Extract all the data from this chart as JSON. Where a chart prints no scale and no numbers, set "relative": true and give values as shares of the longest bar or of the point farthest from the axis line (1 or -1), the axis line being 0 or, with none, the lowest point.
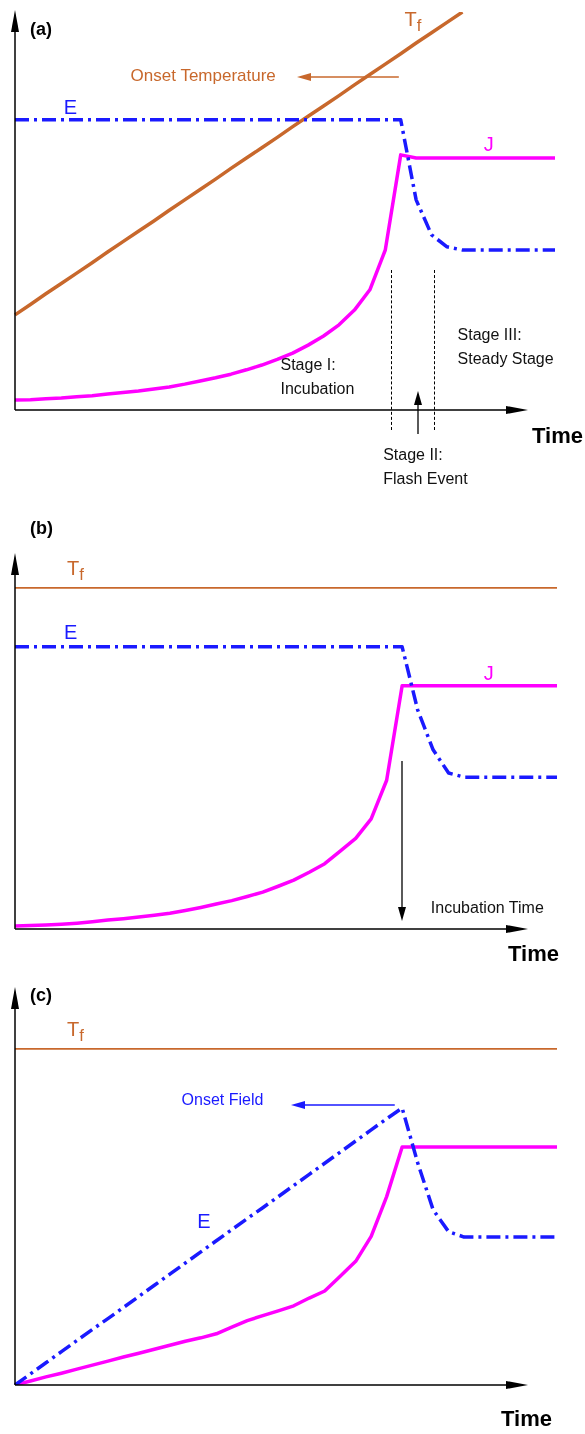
{
  "chart_data": [
    {
      "type": "line",
      "title": "(a)",
      "xlabel": "Time",
      "relative": true,
      "tick_labels": false,
      "marker": "none",
      "categories": [
        null,
        null,
        null,
        null,
        null,
        null,
        null,
        null,
        null,
        null,
        null,
        null,
        null,
        null,
        null,
        null,
        null,
        null,
        null,
        null,
        null,
        null,
        null,
        null,
        null,
        null,
        null,
        null,
        null,
        null,
        null,
        null,
        null,
        null,
        null,
        null
      ],
      "series": [
        {
          "name": "T$_{f}$",
          "color": "#c8682c",
          "values": [
            0.239,
            0.265,
            0.292,
            0.318,
            0.344,
            0.37,
            0.397,
            0.423,
            0.449,
            0.475,
            0.502,
            0.528,
            0.554,
            0.58,
            0.607,
            0.633,
            0.659,
            0.685,
            0.712,
            0.738,
            0.764,
            0.79,
            0.817,
            0.843,
            0.869,
            0.895,
            0.922,
            0.948,
            0.974,
            1.0,
            null,
            null,
            null,
            null,
            null,
            null
          ]
        },
        {
          "name": "E",
          "color": "#1a1aff",
          "line_style": "dashed",
          "values": [
            0.729,
            0.729,
            0.729,
            0.729,
            0.729,
            0.729,
            0.729,
            0.729,
            0.729,
            0.729,
            0.729,
            0.729,
            0.729,
            0.729,
            0.729,
            0.729,
            0.729,
            0.729,
            0.729,
            0.729,
            0.729,
            0.729,
            0.729,
            0.729,
            0.729,
            0.729,
            0.528,
            0.44,
            0.41,
            0.402,
            0.402,
            0.402,
            0.402,
            0.402,
            0.402,
            0.402
          ]
        },
        {
          "name": "J",
          "color": "#ff00ff",
          "values": [
            0.025,
            0.026,
            0.028,
            0.03,
            0.033,
            0.036,
            0.04,
            0.044,
            0.048,
            0.053,
            0.058,
            0.065,
            0.073,
            0.081,
            0.09,
            0.101,
            0.113,
            0.127,
            0.143,
            0.163,
            0.186,
            0.214,
            0.251,
            0.302,
            0.402,
            0.641,
            0.633,
            0.633,
            0.633,
            0.633,
            0.633,
            0.633,
            0.633,
            0.633,
            0.633,
            0.633
          ]
        }
      ],
      "annotations": [
        "Onset Temperature",
        "Stage I:\nIncubation",
        "Stage II:\nFlash Event",
        "Stage III:\nSteady Stage"
      ]
    },
    {
      "type": "line",
      "title": "(b)",
      "xlabel": "Time",
      "relative": true,
      "tick_labels": false,
      "marker": "none",
      "categories": [
        null,
        null,
        null,
        null,
        null,
        null,
        null,
        null,
        null,
        null,
        null,
        null,
        null,
        null,
        null,
        null,
        null,
        null,
        null,
        null,
        null,
        null,
        null,
        null,
        null,
        null,
        null,
        null,
        null,
        null,
        null,
        null,
        null,
        null,
        null,
        null
      ],
      "series": [
        {
          "name": "T$_{f}$",
          "color": "#c8682c",
          "values": [
            1,
            1,
            1,
            1,
            1,
            1,
            1,
            1,
            1,
            1,
            1,
            1,
            1,
            1,
            1,
            1,
            1,
            1,
            1,
            1,
            1,
            1,
            1,
            1,
            1,
            1,
            1,
            1,
            1,
            1,
            1,
            1,
            1,
            1,
            1,
            1
          ]
        },
        {
          "name": "E",
          "color": "#1a1aff",
          "line_style": "dashed",
          "values": [
            0.825,
            0.825,
            0.825,
            0.825,
            0.825,
            0.825,
            0.825,
            0.825,
            0.825,
            0.825,
            0.825,
            0.825,
            0.825,
            0.825,
            0.825,
            0.825,
            0.825,
            0.825,
            0.825,
            0.825,
            0.825,
            0.825,
            0.825,
            0.825,
            0.825,
            0.825,
            0.641,
            0.524,
            0.456,
            0.444,
            0.444,
            0.444,
            0.444,
            0.444,
            0.444,
            0.444
          ]
        },
        {
          "name": "J",
          "color": "#ff00ff",
          "values": [
            0.009,
            0.01,
            0.012,
            0.014,
            0.017,
            0.021,
            0.026,
            0.03,
            0.035,
            0.04,
            0.046,
            0.054,
            0.063,
            0.073,
            0.083,
            0.095,
            0.108,
            0.125,
            0.143,
            0.166,
            0.191,
            0.228,
            0.265,
            0.322,
            0.435,
            0.711,
            0.711,
            0.711,
            0.711,
            0.711,
            0.711,
            0.711,
            0.711,
            0.711,
            0.711,
            0.711
          ]
        }
      ],
      "annotations": [
        "Incubation Time"
      ]
    },
    {
      "type": "line",
      "title": "(c)",
      "xlabel": "Time",
      "relative": true,
      "tick_labels": false,
      "marker": "none",
      "categories": [
        null,
        null,
        null,
        null,
        null,
        null,
        null,
        null,
        null,
        null,
        null,
        null,
        null,
        null,
        null,
        null,
        null,
        null,
        null,
        null,
        null,
        null,
        null,
        null,
        null,
        null,
        null,
        null,
        null,
        null,
        null,
        null,
        null,
        null,
        null,
        null
      ],
      "series": [
        {
          "name": "T$_{f}$",
          "color": "#c8682c",
          "values": [
            1,
            1,
            1,
            1,
            1,
            1,
            1,
            1,
            1,
            1,
            1,
            1,
            1,
            1,
            1,
            1,
            1,
            1,
            1,
            1,
            1,
            1,
            1,
            1,
            1,
            1,
            1,
            1,
            1,
            1,
            1,
            1,
            1,
            1,
            1,
            1
          ]
        },
        {
          "name": "E",
          "color": "#1a1aff",
          "line_style": "dashed",
          "values": [
            0,
            0.033,
            0.066,
            0.099,
            0.132,
            0.165,
            0.197,
            0.23,
            0.263,
            0.296,
            0.329,
            0.362,
            0.395,
            0.428,
            0.461,
            0.494,
            0.526,
            0.559,
            0.592,
            0.625,
            0.658,
            0.691,
            0.724,
            0.757,
            0.79,
            0.822,
            0.66,
            0.52,
            0.455,
            0.439,
            0.439,
            0.439,
            0.439,
            0.439,
            0.439,
            0.439
          ]
        },
        {
          "color": "#ff00ff",
          "values": [
            0,
            0.012,
            0.024,
            0.035,
            0.047,
            0.059,
            0.071,
            0.083,
            0.094,
            0.106,
            0.118,
            0.13,
            0.14,
            0.152,
            0.172,
            0.191,
            0.206,
            0.22,
            0.235,
            0.258,
            0.279,
            0.323,
            0.367,
            0.441,
            0.559,
            0.706,
            0.706,
            0.706,
            0.706,
            0.706,
            0.706,
            0.706,
            0.706,
            0.706,
            0.706,
            0.706
          ]
        }
      ],
      "annotations": [
        "Onset Field"
      ]
    }
  ]
}
